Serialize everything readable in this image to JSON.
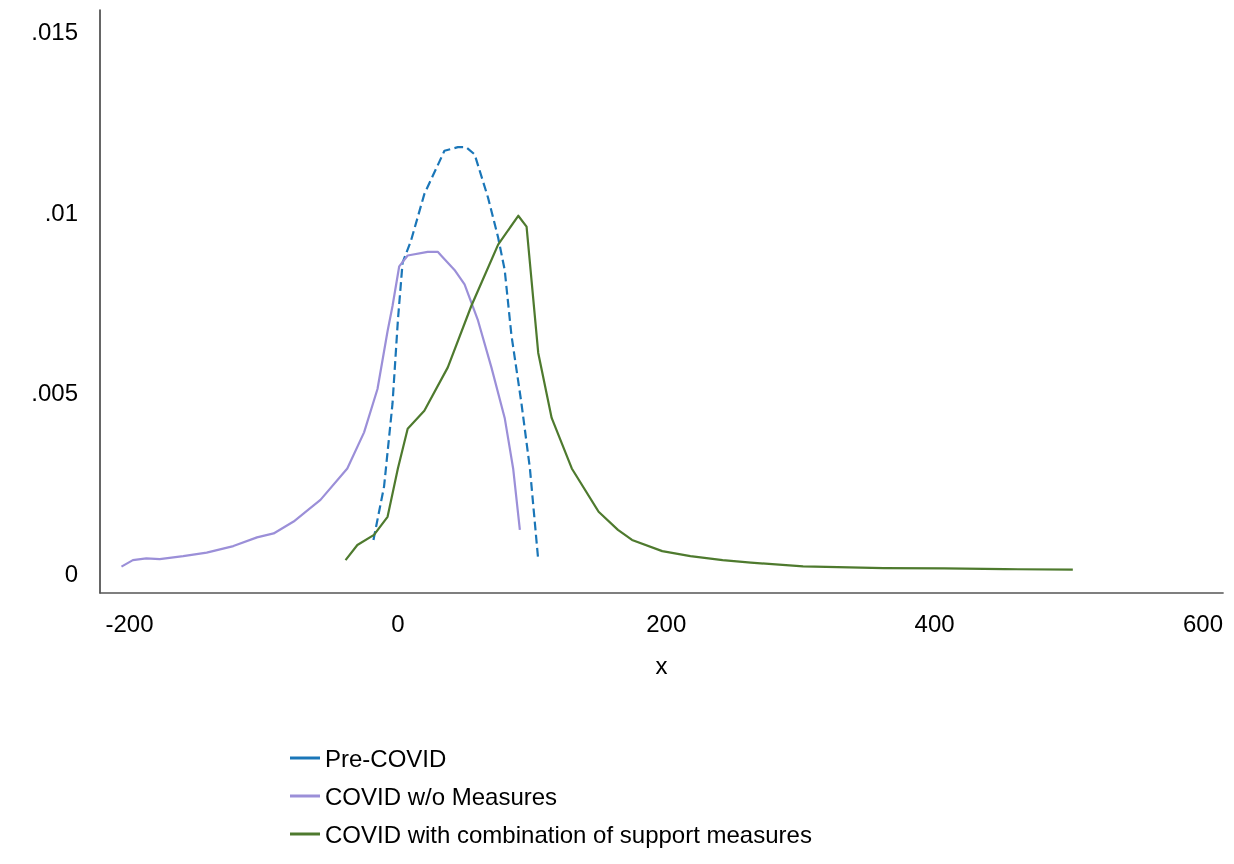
{
  "chart_data": {
    "type": "line",
    "xlabel": "x",
    "xlim": [
      -222,
      615
    ],
    "xticks": [
      -200,
      0,
      200,
      400,
      600
    ],
    "ylim": [
      -0.00055,
      0.0156
    ],
    "yticks": [
      {
        "value": 0,
        "label": "0"
      },
      {
        "value": 0.005,
        "label": ".005"
      },
      {
        "value": 0.01,
        "label": ".01"
      },
      {
        "value": 0.015,
        "label": ".015"
      }
    ],
    "grid": false,
    "legend": "bottom",
    "marker": "none",
    "series": [
      {
        "name": "Pre-COVID",
        "color": "#1a76b8",
        "line_style": "dashed",
        "x": [
          -18.2,
          -10.3,
          -4,
          0,
          3.5,
          9.7,
          19.7,
          34.7,
          44.7,
          50.9,
          57.2,
          67.2,
          74.7,
          79.6,
          84.6,
          92.1,
          98.4,
          104.6
        ],
        "values": [
          0.00092,
          0.0024,
          0.0047,
          0.007,
          0.0086,
          0.0092,
          0.0105,
          0.0117,
          0.0118,
          0.0118,
          0.0116,
          0.0104,
          0.0093,
          0.0084,
          0.0066,
          0.0047,
          0.0029,
          0.00036
        ]
      },
      {
        "name": "COVID w/o Measures",
        "color": "#9b8fd8",
        "line_style": "solid",
        "x": [
          -206,
          -197.5,
          -187.5,
          -177.5,
          -160,
          -142.5,
          -122.6,
          -105,
          -92.6,
          -77.7,
          -57.7,
          -37.7,
          -25.2,
          -15.2,
          -7.7,
          -4,
          1,
          7.3,
          22.2,
          29.7,
          42.2,
          49.7,
          59.7,
          69.7,
          79.6,
          85.9,
          90.9
        ],
        "values": [
          0.00018,
          0.00036,
          0.00041,
          0.00039,
          0.00047,
          0.00057,
          0.00075,
          0.00099,
          0.0011,
          0.00143,
          0.00203,
          0.0029,
          0.0039,
          0.0051,
          0.0067,
          0.0074,
          0.0085,
          0.0088,
          0.0089,
          0.0089,
          0.0084,
          0.008,
          0.007,
          0.0057,
          0.0043,
          0.0029,
          0.0012
        ]
      },
      {
        "name": "COVID with combination of support measures",
        "color": "#4e7a2e",
        "line_style": "solid",
        "x": [
          -39,
          -30.2,
          -17.8,
          -7.7,
          0,
          7.3,
          19.7,
          37.2,
          54.7,
          74.7,
          89.7,
          95.9,
          104.6,
          114.6,
          129.6,
          149.6,
          164,
          174.5,
          197,
          218,
          242,
          263,
          302,
          362,
          407,
          452,
          503
        ],
        "values": [
          0.00036,
          0.00078,
          0.00106,
          0.00156,
          0.0029,
          0.004,
          0.0045,
          0.0057,
          0.0074,
          0.0091,
          0.0099,
          0.0096,
          0.0061,
          0.0043,
          0.0029,
          0.0017,
          0.0012,
          0.00092,
          0.00061,
          0.00047,
          0.00036,
          0.00029,
          0.00019,
          0.00014,
          0.00013,
          0.00011,
          0.0001
        ]
      }
    ]
  }
}
